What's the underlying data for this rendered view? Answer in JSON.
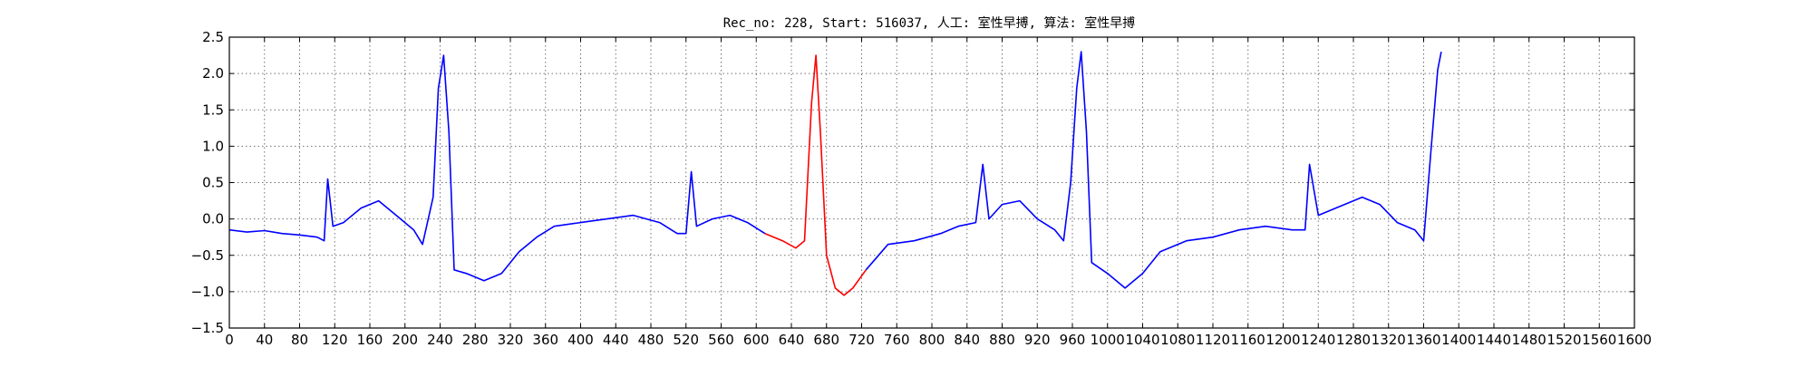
{
  "chart_data": {
    "type": "line",
    "title": "Rec_no: 228, Start: 516037, 人工: 室性早搏, 算法: 室性早搏",
    "xlabel": "",
    "ylabel": "",
    "xlim": [
      0,
      1600
    ],
    "ylim": [
      -1.5,
      2.5
    ],
    "grid": true,
    "legend": "none",
    "x_ticks": [
      0,
      40,
      80,
      120,
      160,
      200,
      240,
      280,
      320,
      360,
      400,
      440,
      480,
      520,
      560,
      600,
      640,
      680,
      720,
      760,
      800,
      840,
      880,
      920,
      960,
      1000,
      1040,
      1080,
      1120,
      1160,
      1200,
      1240,
      1280,
      1320,
      1360,
      1400,
      1440,
      1480,
      1520,
      1560,
      1600
    ],
    "x_tick_labels": [
      "0",
      "40",
      "80",
      "120",
      "160",
      "200",
      "240",
      "280",
      "320",
      "360",
      "400",
      "440",
      "480",
      "520",
      "560",
      "600",
      "640",
      "680",
      "720",
      "760",
      "800",
      "840",
      "880",
      "920",
      "960",
      "1000",
      "1040",
      "1080",
      "1120",
      "1160",
      "1200",
      "1240",
      "1280",
      "1320",
      "1360",
      "1400",
      "1440",
      "1480",
      "1520",
      "1560",
      "1600"
    ],
    "y_ticks": [
      -1.5,
      -1.0,
      -0.5,
      0.0,
      0.5,
      1.0,
      1.5,
      2.0,
      2.5
    ],
    "y_tick_labels": [
      "−1.5",
      "−1.0",
      "−0.5",
      "0.0",
      "0.5",
      "1.0",
      "1.5",
      "2.0",
      "2.5"
    ],
    "series": [
      {
        "color": "#0000ff",
        "points": [
          [
            0,
            -0.15
          ],
          [
            20,
            -0.18
          ],
          [
            40,
            -0.16
          ],
          [
            60,
            -0.2
          ],
          [
            80,
            -0.22
          ],
          [
            100,
            -0.25
          ],
          [
            108,
            -0.3
          ],
          [
            112,
            0.55
          ],
          [
            118,
            -0.1
          ],
          [
            130,
            -0.05
          ],
          [
            150,
            0.15
          ],
          [
            170,
            0.25
          ],
          [
            190,
            0.05
          ],
          [
            210,
            -0.15
          ],
          [
            220,
            -0.35
          ],
          [
            232,
            0.3
          ],
          [
            238,
            1.8
          ],
          [
            244,
            2.25
          ],
          [
            250,
            1.2
          ],
          [
            256,
            -0.7
          ],
          [
            270,
            -0.75
          ],
          [
            290,
            -0.85
          ],
          [
            310,
            -0.75
          ],
          [
            330,
            -0.45
          ],
          [
            350,
            -0.25
          ],
          [
            370,
            -0.1
          ],
          [
            400,
            -0.05
          ],
          [
            430,
            0.0
          ],
          [
            460,
            0.05
          ],
          [
            490,
            -0.05
          ],
          [
            510,
            -0.2
          ],
          [
            520,
            -0.2
          ],
          [
            526,
            0.65
          ],
          [
            532,
            -0.1
          ],
          [
            550,
            0.0
          ],
          [
            570,
            0.05
          ],
          [
            590,
            -0.05
          ],
          [
            610,
            -0.2
          ]
        ]
      },
      {
        "color": "#ff0000",
        "points": [
          [
            610,
            -0.2
          ],
          [
            630,
            -0.3
          ],
          [
            645,
            -0.4
          ],
          [
            655,
            -0.3
          ],
          [
            663,
            1.6
          ],
          [
            668,
            2.25
          ],
          [
            673,
            1.2
          ],
          [
            680,
            -0.5
          ],
          [
            690,
            -0.95
          ],
          [
            700,
            -1.05
          ],
          [
            710,
            -0.95
          ],
          [
            725,
            -0.7
          ]
        ]
      },
      {
        "color": "#0000ff",
        "points": [
          [
            725,
            -0.7
          ],
          [
            750,
            -0.35
          ],
          [
            780,
            -0.3
          ],
          [
            810,
            -0.2
          ],
          [
            830,
            -0.1
          ],
          [
            850,
            -0.05
          ],
          [
            858,
            0.75
          ],
          [
            865,
            0.0
          ],
          [
            880,
            0.2
          ],
          [
            900,
            0.25
          ],
          [
            920,
            0.0
          ],
          [
            940,
            -0.15
          ],
          [
            950,
            -0.3
          ],
          [
            958,
            0.5
          ],
          [
            965,
            1.8
          ],
          [
            970,
            2.3
          ],
          [
            976,
            1.2
          ],
          [
            982,
            -0.6
          ],
          [
            1000,
            -0.75
          ],
          [
            1020,
            -0.95
          ],
          [
            1040,
            -0.75
          ],
          [
            1060,
            -0.45
          ],
          [
            1090,
            -0.3
          ],
          [
            1120,
            -0.25
          ],
          [
            1150,
            -0.15
          ],
          [
            1180,
            -0.1
          ],
          [
            1210,
            -0.15
          ],
          [
            1225,
            -0.15
          ],
          [
            1230,
            0.75
          ],
          [
            1240,
            0.05
          ],
          [
            1260,
            0.15
          ],
          [
            1290,
            0.3
          ],
          [
            1310,
            0.2
          ],
          [
            1330,
            -0.05
          ],
          [
            1350,
            -0.15
          ],
          [
            1360,
            -0.3
          ],
          [
            1368,
            0.9
          ],
          [
            1376,
            2.05
          ],
          [
            1380,
            2.3
          ]
        ]
      }
    ]
  }
}
